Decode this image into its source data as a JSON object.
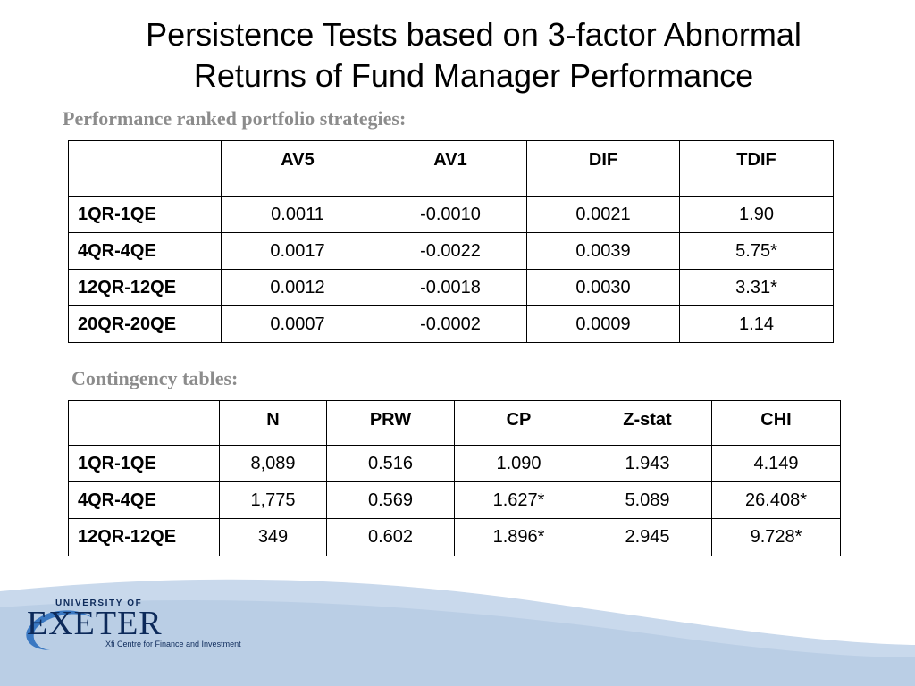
{
  "title": {
    "line1": "Persistence Tests based on 3-factor Abnormal",
    "line2": "Returns of Fund Manager Performance"
  },
  "performance_section": {
    "label": "Performance ranked portfolio strategies:",
    "headers": [
      "",
      "AV5",
      "AV1",
      "DIF",
      "TDIF"
    ],
    "rows": [
      [
        "1QR-1QE",
        "0.0011",
        "-0.0010",
        "0.0021",
        "1.90"
      ],
      [
        "4QR-4QE",
        "0.0017",
        "-0.0022",
        "0.0039",
        "5.75*"
      ],
      [
        "12QR-12QE",
        "0.0012",
        "-0.0018",
        "0.0030",
        "3.31*"
      ],
      [
        "20QR-20QE",
        "0.0007",
        "-0.0002",
        "0.0009",
        "1.14"
      ]
    ]
  },
  "contingency_section": {
    "label": "Contingency tables:",
    "headers": [
      "",
      "N",
      "PRW",
      "CP",
      "Z-stat",
      "CHI"
    ],
    "rows": [
      [
        "1QR-1QE",
        "8,089",
        "0.516",
        "1.090",
        "1.943",
        "4.149"
      ],
      [
        "4QR-4QE",
        "1,775",
        "0.569",
        "1.627*",
        "5.089",
        "26.408*"
      ],
      [
        "12QR-12QE",
        "349",
        "0.602",
        "1.896*",
        "2.945",
        "9.728*"
      ]
    ]
  },
  "logo": {
    "top_text": "UNIVERSITY OF",
    "main_text": "EXETER",
    "sub_text": "Xfi Centre for Finance and Investment"
  },
  "colors": {
    "section_label": "#8c8c8c",
    "footer_light": "#c9d9ec",
    "footer_mid": "#b3c9e3",
    "logo_navy": "#0d2a5a",
    "logo_swoosh": "#3a78c2"
  }
}
